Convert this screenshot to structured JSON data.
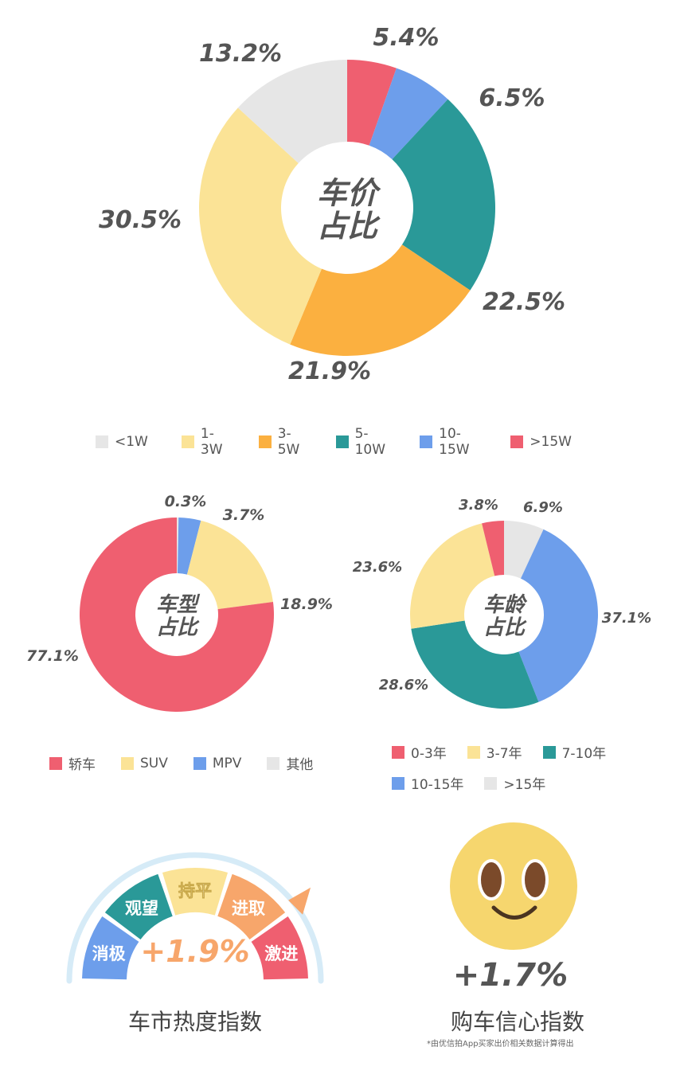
{
  "colors": {
    "gray": "#e6e6e6",
    "yellow": "#fbe396",
    "orange": "#fbb040",
    "teal": "#2a9998",
    "blue": "#6d9eeb",
    "red": "#ef5f70",
    "peach": "#f7a66b",
    "face": "#f6d66e",
    "eye": "#7b4a2a",
    "text": "#555555"
  },
  "chart_data": [
    {
      "type": "pie",
      "title": "车价占比",
      "title_lines": [
        "车价",
        "占比"
      ],
      "series": [
        {
          "name": "<1W",
          "value": 13.2,
          "label": "13.2%",
          "color": "#e6e6e6"
        },
        {
          "name": "1-3W",
          "value": 30.5,
          "label": "30.5%",
          "color": "#fbe396"
        },
        {
          "name": "3-5W",
          "value": 21.9,
          "label": "21.9%",
          "color": "#fbb040"
        },
        {
          "name": "5-10W",
          "value": 22.5,
          "label": "22.5%",
          "color": "#2a9998"
        },
        {
          "name": "10-15W",
          "value": 6.5,
          "label": "6.5%",
          "color": "#6d9eeb"
        },
        {
          "name": ">15W",
          "value": 5.4,
          "label": "5.4%",
          "color": "#ef5f70"
        }
      ],
      "legend": "bottom"
    },
    {
      "type": "pie",
      "title": "车型占比",
      "title_lines": [
        "车型",
        "占比"
      ],
      "series": [
        {
          "name": "轿车",
          "value": 77.1,
          "label": "77.1%",
          "color": "#ef5f70"
        },
        {
          "name": "SUV",
          "value": 18.9,
          "label": "18.9%",
          "color": "#fbe396"
        },
        {
          "name": "MPV",
          "value": 3.7,
          "label": "3.7%",
          "color": "#6d9eeb"
        },
        {
          "name": "其他",
          "value": 0.3,
          "label": "0.3%",
          "color": "#e6e6e6"
        }
      ],
      "legend": "bottom"
    },
    {
      "type": "pie",
      "title": "车龄占比",
      "title_lines": [
        "车龄",
        "占比"
      ],
      "series": [
        {
          "name": "0-3年",
          "value": 3.8,
          "label": "3.8%",
          "color": "#ef5f70"
        },
        {
          "name": "3-7年",
          "value": 23.6,
          "label": "23.6%",
          "color": "#fbe396"
        },
        {
          "name": "7-10年",
          "value": 28.6,
          "label": "28.6%",
          "color": "#2a9998"
        },
        {
          "name": "10-15年",
          "value": 37.1,
          "label": "37.1%",
          "color": "#6d9eeb"
        },
        {
          "name": ">15年",
          "value": 6.9,
          "label": "6.9%",
          "color": "#e6e6e6"
        }
      ],
      "legend": "bottom"
    }
  ],
  "gauge": {
    "segments": [
      "消极",
      "观望",
      "持平",
      "进取",
      "激进"
    ],
    "value": "+1.9%",
    "caption": "车市热度指数"
  },
  "confidence": {
    "value": "+1.7%",
    "caption": "购车信心指数",
    "footnote": "*由优信拍App买家出价相关数据计算得出"
  }
}
